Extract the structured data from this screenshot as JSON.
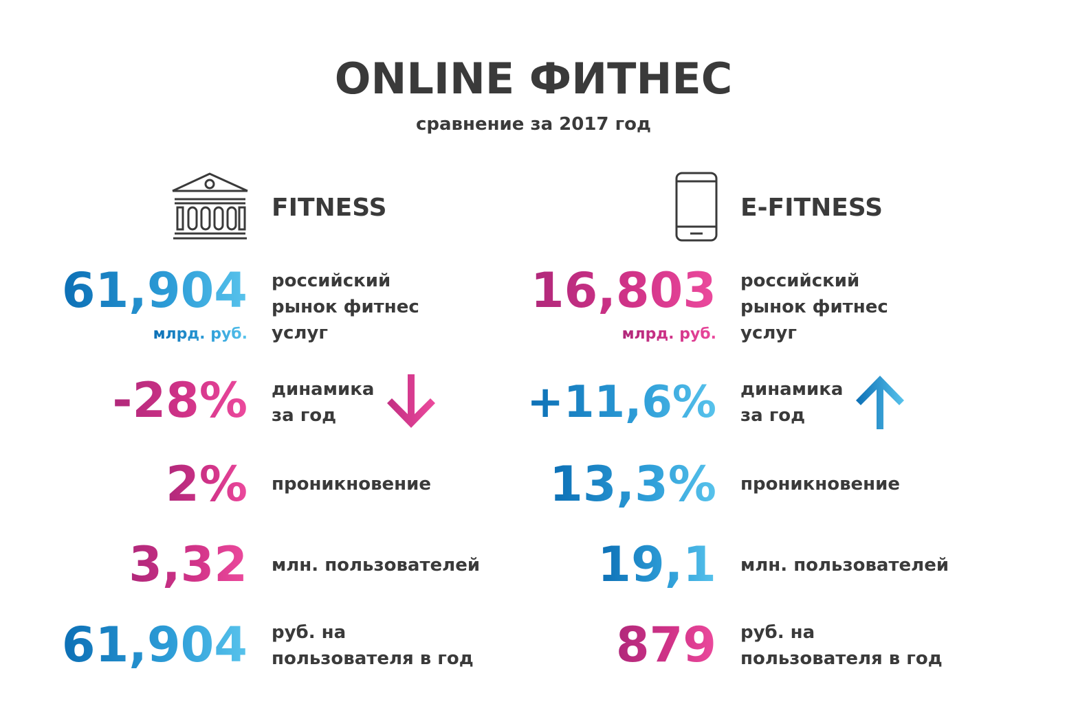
{
  "header": {
    "title": "ONLINE ФИТНЕС",
    "subtitle": "сравнение за 2017 год"
  },
  "colors": {
    "pink": "#d13388",
    "blue": "#1a87c9",
    "text": "#3a3a3a"
  },
  "left": {
    "icon": "building-icon",
    "heading": "FITNESS",
    "market": {
      "value": "61,904",
      "unit": "млрд. руб.",
      "desc": [
        "российский",
        "рынок фитнес",
        "услуг"
      ]
    },
    "dynamics": {
      "value": "-28%",
      "desc": [
        "динамика",
        "за год"
      ],
      "icon": "arrow-down-icon"
    },
    "penetration": {
      "value": "2%",
      "desc": "проникновение"
    },
    "users": {
      "value": "3,32",
      "desc": "млн. пользователей"
    },
    "per_user": {
      "value": "61,904",
      "desc": [
        "руб. на",
        "пользователя в год"
      ]
    }
  },
  "right": {
    "icon": "smartphone-icon",
    "heading": "E-FITNESS",
    "market": {
      "value": "16,803",
      "unit": "млрд. руб.",
      "desc": [
        "российский",
        "рынок фитнес",
        "услуг"
      ]
    },
    "dynamics": {
      "value": "+11,6%",
      "desc": [
        "динамика",
        "за год"
      ],
      "icon": "arrow-up-icon"
    },
    "penetration": {
      "value": "13,3%",
      "desc": "проникновение"
    },
    "users": {
      "value": "19,1",
      "desc": "млн. пользователей"
    },
    "per_user": {
      "value": "879",
      "desc": [
        "руб. на",
        "пользователя в год"
      ]
    }
  }
}
